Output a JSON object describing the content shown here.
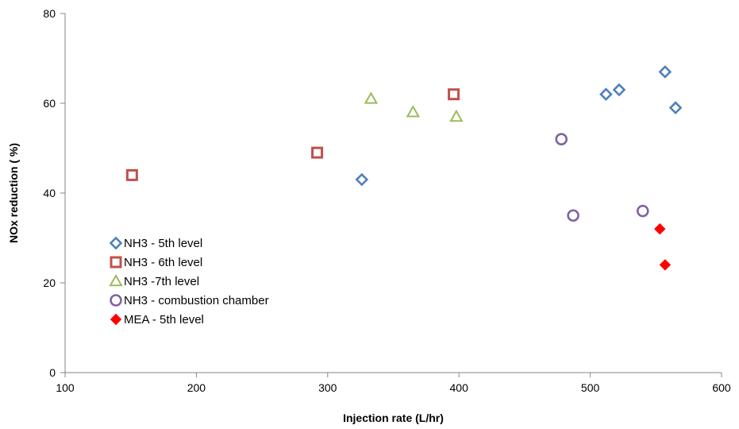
{
  "chart_data": {
    "type": "scatter",
    "title": "",
    "xlabel": "Injection rate (L/hr)",
    "ylabel": "NOx reduction ( %)",
    "xlim": [
      100,
      600
    ],
    "ylim": [
      0,
      80
    ],
    "xticks": [
      100,
      200,
      300,
      400,
      500,
      600
    ],
    "yticks": [
      0,
      20,
      40,
      60,
      80
    ],
    "grid": false,
    "legend_position": "left",
    "series": [
      {
        "name": "NH3 - 5th level",
        "marker": "diamond-open",
        "color": "#4F81BD",
        "points": [
          [
            326,
            43
          ],
          [
            512,
            62
          ],
          [
            522,
            63
          ],
          [
            557,
            67
          ],
          [
            565,
            59
          ]
        ]
      },
      {
        "name": "NH3 - 6th level",
        "marker": "square-open",
        "color": "#C0504D",
        "points": [
          [
            151,
            44
          ],
          [
            292,
            49
          ],
          [
            396,
            62
          ]
        ]
      },
      {
        "name": "NH3 -7th level",
        "marker": "triangle-open",
        "color": "#9BBB59",
        "points": [
          [
            333,
            61
          ],
          [
            365,
            58
          ],
          [
            398,
            57
          ]
        ]
      },
      {
        "name": "NH3 - combustion chamber",
        "marker": "circle-open",
        "color": "#8064A2",
        "points": [
          [
            478,
            52
          ],
          [
            487,
            35
          ],
          [
            540,
            36
          ]
        ]
      },
      {
        "name": "MEA - 5th level",
        "marker": "diamond-filled",
        "color": "#FF0000",
        "points": [
          [
            553,
            32
          ],
          [
            557,
            24
          ]
        ]
      }
    ]
  }
}
